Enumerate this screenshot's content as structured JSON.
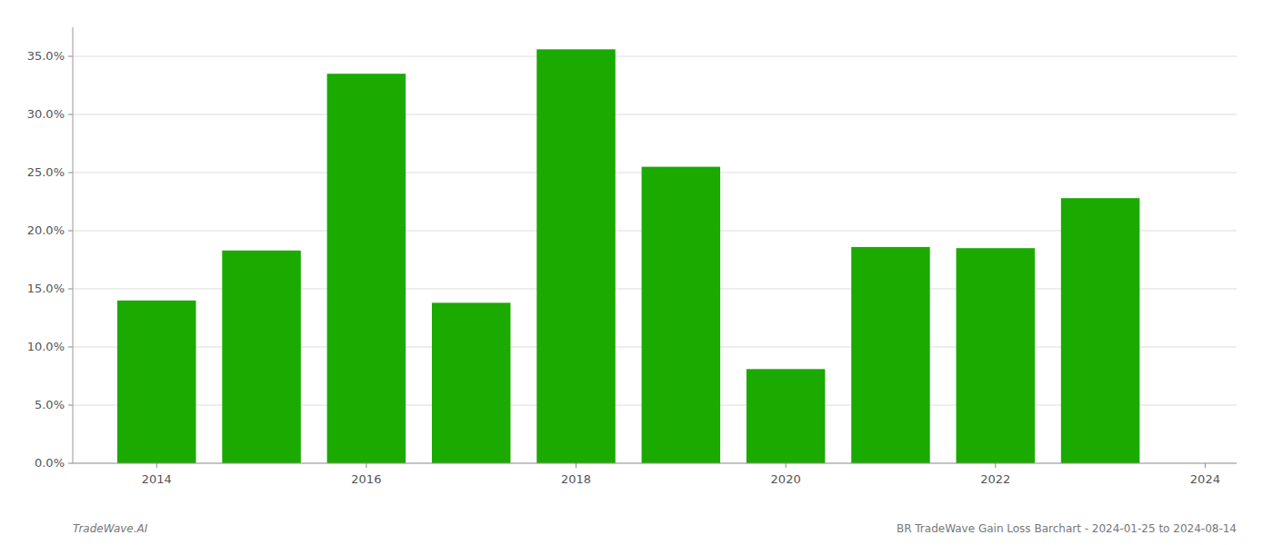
{
  "chart_data": {
    "type": "bar",
    "x": [
      2014,
      2015,
      2016,
      2017,
      2018,
      2019,
      2020,
      2021,
      2022,
      2023
    ],
    "values": [
      0.14,
      0.183,
      0.335,
      0.138,
      0.356,
      0.255,
      0.081,
      0.186,
      0.185,
      0.228
    ],
    "color": "#1aaa00",
    "ylim": [
      0.0,
      0.375
    ],
    "yticks": [
      {
        "value": 0.0,
        "label": "0.0%"
      },
      {
        "value": 0.05,
        "label": "5.0%"
      },
      {
        "value": 0.1,
        "label": "10.0%"
      },
      {
        "value": 0.15,
        "label": "15.0%"
      },
      {
        "value": 0.2,
        "label": "20.0%"
      },
      {
        "value": 0.25,
        "label": "25.0%"
      },
      {
        "value": 0.3,
        "label": "30.0%"
      },
      {
        "value": 0.35,
        "label": "35.0%"
      }
    ],
    "xlim": [
      2013.2,
      2024.3
    ],
    "xticks": [
      2014,
      2016,
      2018,
      2020,
      2022,
      2024
    ],
    "grid": true,
    "annotations": [
      "TradeWave.AI",
      "BR TradeWave Gain Loss Barchart - 2024-01-25 to 2024-08-14"
    ]
  }
}
